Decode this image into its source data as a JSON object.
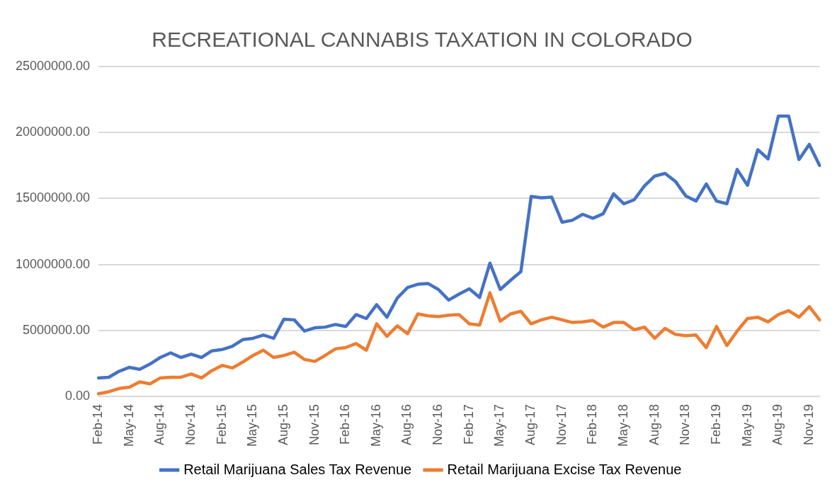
{
  "chart_data": {
    "type": "line",
    "title": "RECREATIONAL CANNABIS TAXATION IN COLORADO",
    "categories": [
      "Feb-14",
      null,
      null,
      "May-14",
      null,
      null,
      "Aug-14",
      null,
      null,
      "Nov-14",
      null,
      null,
      "Feb-15",
      null,
      null,
      "May-15",
      null,
      null,
      "Aug-15",
      null,
      null,
      "Nov-15",
      null,
      null,
      "Feb-16",
      null,
      null,
      "May-16",
      null,
      null,
      "Aug-16",
      null,
      null,
      "Nov-16",
      null,
      null,
      "Feb-17",
      null,
      null,
      "May-17",
      null,
      null,
      "Aug-17",
      null,
      null,
      "Nov-17",
      null,
      null,
      "Feb-18",
      null,
      null,
      "May-18",
      null,
      null,
      "Aug-18",
      null,
      null,
      "Nov-18",
      null,
      null,
      "Feb-19",
      null,
      null,
      "May-19",
      null,
      null,
      "Aug-19",
      null,
      null,
      "Nov-19",
      null
    ],
    "series": [
      {
        "name": "Retail Marijuana Sales Tax Revenue",
        "color": "#4472c4",
        "values": [
          1400000,
          1450000,
          1900000,
          2200000,
          2050000,
          2450000,
          2950000,
          3300000,
          2950000,
          3200000,
          2950000,
          3450000,
          3550000,
          3800000,
          4300000,
          4400000,
          4650000,
          4400000,
          5850000,
          5800000,
          4950000,
          5200000,
          5250000,
          5450000,
          5300000,
          6200000,
          5900000,
          6950000,
          6000000,
          7450000,
          8250000,
          8500000,
          8550000,
          8100000,
          7300000,
          7750000,
          8150000,
          7500000,
          10100000,
          8100000,
          8800000,
          9450000,
          15150000,
          15050000,
          15100000,
          13200000,
          13350000,
          13800000,
          13500000,
          13850000,
          15350000,
          14600000,
          14900000,
          15950000,
          16700000,
          16900000,
          16300000,
          15200000,
          14800000,
          16100000,
          14800000,
          14600000,
          17200000,
          16000000,
          18700000,
          18000000,
          21250000,
          21250000,
          17950000,
          19100000,
          17500000
        ]
      },
      {
        "name": "Retail Marijuana Excise Tax Revenue",
        "color": "#ed7d31",
        "values": [
          200000,
          350000,
          600000,
          700000,
          1100000,
          950000,
          1400000,
          1450000,
          1450000,
          1700000,
          1400000,
          1950000,
          2350000,
          2150000,
          2600000,
          3100000,
          3500000,
          2950000,
          3100000,
          3350000,
          2800000,
          2650000,
          3100000,
          3600000,
          3700000,
          4000000,
          3500000,
          5500000,
          4550000,
          5350000,
          4750000,
          6250000,
          6100000,
          6050000,
          6150000,
          6200000,
          5500000,
          5400000,
          7850000,
          5700000,
          6250000,
          6450000,
          5500000,
          5800000,
          6000000,
          5800000,
          5600000,
          5650000,
          5750000,
          5250000,
          5600000,
          5600000,
          5050000,
          5250000,
          4400000,
          5150000,
          4700000,
          4600000,
          4650000,
          3700000,
          5300000,
          3850000,
          4950000,
          5900000,
          6000000,
          5650000,
          6200000,
          6500000,
          6000000,
          6800000,
          5800000
        ]
      }
    ],
    "ylim": [
      0,
      25000000
    ],
    "yticks": [
      {
        "value": 0,
        "label": "0.00"
      },
      {
        "value": 5000000,
        "label": "5000000.00"
      },
      {
        "value": 10000000,
        "label": "10000000.00"
      },
      {
        "value": 15000000,
        "label": "15000000.00"
      },
      {
        "value": 20000000,
        "label": "20000000.00"
      },
      {
        "value": 25000000,
        "label": "25000000.00"
      }
    ],
    "grid": "y",
    "legend": "bottom",
    "marker": "none",
    "line_style": "solid"
  }
}
